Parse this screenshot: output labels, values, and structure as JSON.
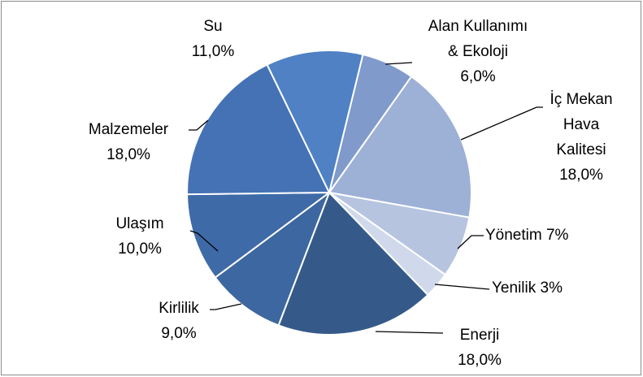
{
  "chart_data": {
    "type": "pie",
    "categories": [
      "Alan Kullanımı & Ekoloji",
      "İç Mekan Hava Kalitesi",
      "Yönetim",
      "Yenilik",
      "Enerji",
      "Kirlilik",
      "Ulaşım",
      "Malzemeler",
      "Su"
    ],
    "values": [
      6,
      18,
      7,
      3,
      18,
      9,
      10,
      18,
      11
    ],
    "value_labels": [
      "6,0%",
      "18,0%",
      "7%",
      "3%",
      "18,0%",
      "9,0%",
      "10,0%",
      "18,0%",
      "11,0%"
    ],
    "colors": [
      "#7f9acb",
      "#9db0d6",
      "#b6c4e0",
      "#d0d9ec",
      "#355a8a",
      "#3d67a0",
      "#3e6aa8",
      "#4472b5",
      "#4f81c4"
    ]
  }
}
